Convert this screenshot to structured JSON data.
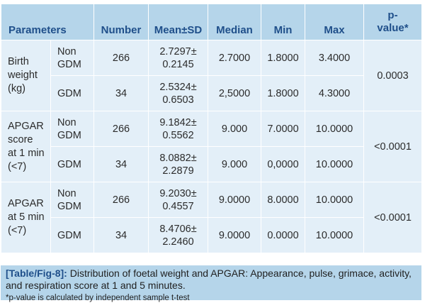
{
  "table": {
    "headers": {
      "parameters": "Parameters",
      "number": "Number",
      "mean_sd": "Mean±SD",
      "median": "Median",
      "min": "Min",
      "max": "Max",
      "p_value_line1": "p-",
      "p_value_line2": "value*"
    },
    "sections": [
      {
        "parameter_lines": [
          "Birth",
          "weight",
          "(kg)"
        ],
        "p_value": "0.0003",
        "rows": [
          {
            "group_lines": [
              "Non",
              "GDM"
            ],
            "number": "266",
            "mean_line1": "2.7297±",
            "mean_line2": "0.2145",
            "median": "2.7000",
            "min": "1.8000",
            "max": "3.4000"
          },
          {
            "group_lines": [
              "GDM"
            ],
            "number": "34",
            "mean_line1": "2.5324±",
            "mean_line2": "0.6503",
            "median": "2,5000",
            "min": "1.8000",
            "max": "4.3000"
          }
        ]
      },
      {
        "parameter_lines": [
          "APGAR",
          "score",
          "at 1 min",
          "(<7)"
        ],
        "p_value": "<0.0001",
        "rows": [
          {
            "group_lines": [
              "Non",
              "GDM"
            ],
            "number": "266",
            "mean_line1": "9.1842±",
            "mean_line2": "0.5562",
            "median": "9.000",
            "min": "7.0000",
            "max": "10.0000"
          },
          {
            "group_lines": [
              "GDM"
            ],
            "number": "34",
            "mean_line1": "8.0882±",
            "mean_line2": "2.2879",
            "median": "9.000",
            "min": "0,0000",
            "max": "10.0000"
          }
        ]
      },
      {
        "parameter_lines": [
          "APGAR",
          "at 5 min",
          "(<7)"
        ],
        "p_value": "<0.0001",
        "rows": [
          {
            "group_lines": [
              "Non",
              "GDM"
            ],
            "number": "266",
            "mean_line1": "9.2030±",
            "mean_line2": "0.4557",
            "median": "9.0000",
            "min": "8.0000",
            "max": "10.0000"
          },
          {
            "group_lines": [
              "GDM"
            ],
            "number": "34",
            "mean_line1": "8.4706±",
            "mean_line2": "2.2460",
            "median": "9.0000",
            "min": "0.0000",
            "max": "10.0000"
          }
        ]
      }
    ]
  },
  "caption": {
    "tag": "[Table/Fig-8]:",
    "text": " Distribution of foetal weight and APGAR: Appearance, pulse, grimace, activity, and respiration score at 1 and 5 minutes.",
    "footnote": "*p-value is calculated by independent sample t-test"
  },
  "colors": {
    "header_background": "#b5d5ea",
    "body_background": "#e3eff8",
    "header_text": "#1f4f8a"
  }
}
